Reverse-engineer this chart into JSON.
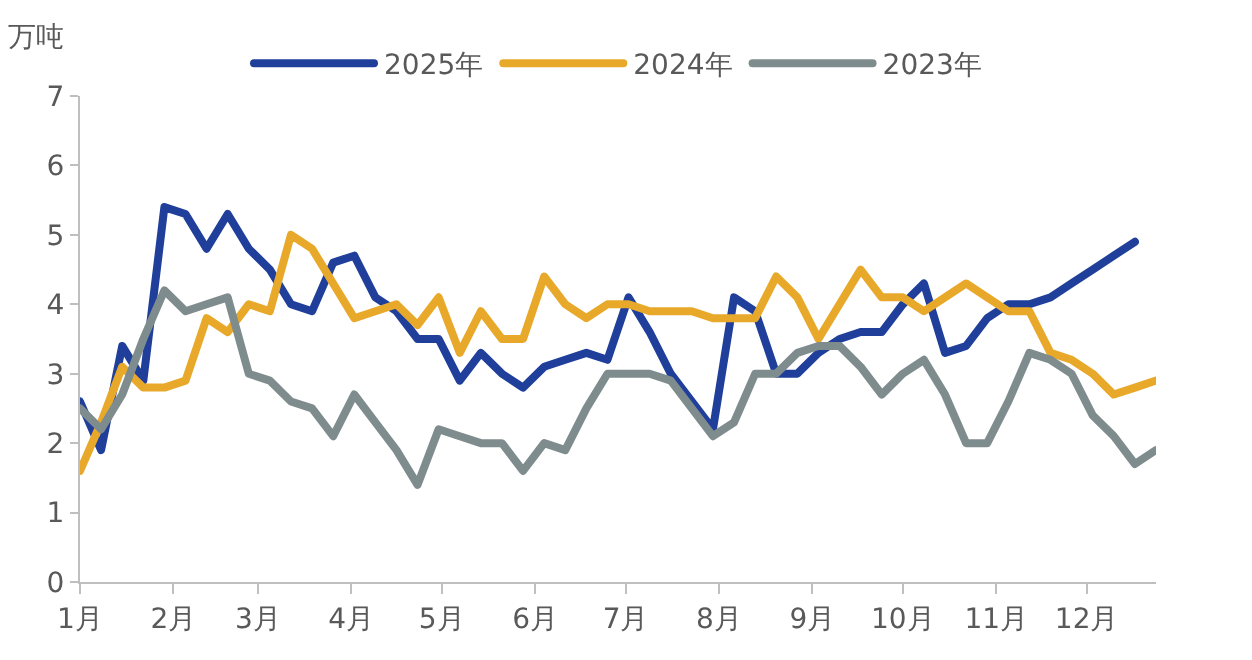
{
  "chart_data": {
    "type": "line",
    "ylabel": "万吨",
    "x": [
      "--01-01",
      "--01-08",
      "--01-15",
      "--01-22",
      "--01-29",
      "--02-05",
      "--02-12",
      "--02-19",
      "--02-26",
      "--03-05",
      "--03-12",
      "--03-19",
      "--03-26",
      "--04-02",
      "--04-09",
      "--04-16",
      "--04-23",
      "--04-30",
      "--05-07",
      "--05-14",
      "--05-21",
      "--05-28",
      "--06-04",
      "--06-11",
      "--06-18",
      "--06-25",
      "--07-02",
      "--07-09",
      "--07-16",
      "--07-23",
      "--07-30",
      "--08-06",
      "--08-13",
      "--08-20",
      "--08-27",
      "--09-03",
      "--09-10",
      "--09-17",
      "--09-24",
      "--10-01",
      "--10-08",
      "--10-15",
      "--10-22",
      "--10-29",
      "--11-05",
      "--11-12",
      "--11-19",
      "--11-26",
      "--12-03",
      "--12-10",
      "--12-17",
      "--12-24"
    ],
    "series": [
      {
        "name": "2025年",
        "color": "#1f3f9a",
        "values": [
          2.6,
          1.9,
          3.4,
          2.9,
          5.4,
          5.3,
          4.8,
          5.3,
          4.8,
          4.5,
          4.0,
          3.9,
          4.6,
          4.7,
          4.1,
          3.9,
          3.5,
          3.5,
          2.9,
          3.3,
          3.0,
          2.8,
          3.1,
          3.2,
          3.3,
          3.2,
          4.1,
          3.6,
          3.0,
          2.6,
          2.2,
          4.1,
          3.9,
          3.0,
          3.0,
          3.3,
          3.5,
          3.6,
          3.6,
          4.0,
          4.3,
          3.3,
          3.4,
          3.8,
          4.0,
          4.0,
          4.1,
          4.3,
          4.5,
          4.7,
          4.9,
          null
        ]
      },
      {
        "name": "2024年",
        "color": "#e8a92a",
        "values": [
          1.6,
          2.3,
          3.1,
          2.8,
          2.8,
          2.9,
          3.8,
          3.6,
          4.0,
          3.9,
          5.0,
          4.8,
          4.3,
          3.8,
          3.9,
          4.0,
          3.7,
          4.1,
          3.3,
          3.9,
          3.5,
          3.5,
          4.4,
          4.0,
          3.8,
          4.0,
          4.0,
          3.9,
          3.9,
          3.9,
          3.8,
          3.8,
          3.8,
          4.4,
          4.1,
          3.5,
          4.0,
          4.5,
          4.1,
          4.1,
          3.9,
          4.1,
          4.3,
          4.1,
          3.9,
          3.9,
          3.3,
          3.2,
          3.0,
          2.7,
          2.8,
          2.9
        ]
      },
      {
        "name": "2023年",
        "color": "#7f8c8d",
        "values": [
          2.5,
          2.2,
          2.7,
          3.5,
          4.2,
          3.9,
          4.0,
          4.1,
          3.0,
          2.9,
          2.6,
          2.5,
          2.1,
          2.7,
          2.3,
          1.9,
          1.4,
          2.2,
          2.1,
          2.0,
          2.0,
          1.6,
          2.0,
          1.9,
          2.5,
          3.0,
          3.0,
          3.0,
          2.9,
          2.5,
          2.1,
          2.3,
          3.0,
          3.0,
          3.3,
          3.4,
          3.4,
          3.1,
          2.7,
          3.0,
          3.2,
          2.7,
          2.0,
          2.0,
          2.6,
          3.3,
          3.2,
          3.0,
          2.4,
          2.1,
          1.7,
          1.9
        ]
      }
    ],
    "xticks": [
      {
        "value": "--01-01",
        "label": "1月"
      },
      {
        "value": "--02-01",
        "label": "2月"
      },
      {
        "value": "--03-01",
        "label": "3月"
      },
      {
        "value": "--04-01",
        "label": "4月"
      },
      {
        "value": "--05-01",
        "label": "5月"
      },
      {
        "value": "--06-01",
        "label": "6月"
      },
      {
        "value": "--07-01",
        "label": "7月"
      },
      {
        "value": "--08-01",
        "label": "8月"
      },
      {
        "value": "--09-01",
        "label": "9月"
      },
      {
        "value": "--10-01",
        "label": "10月"
      },
      {
        "value": "--11-01",
        "label": "11月"
      },
      {
        "value": "--12-01",
        "label": "12月"
      }
    ],
    "xlim": [
      "--01-01",
      "--12-24"
    ],
    "ylim": [
      0,
      7
    ],
    "yticks": [
      0,
      1,
      2,
      3,
      4,
      5,
      6,
      7
    ],
    "grid": false,
    "legend": "top",
    "marker": "none",
    "line_style": "solid"
  }
}
